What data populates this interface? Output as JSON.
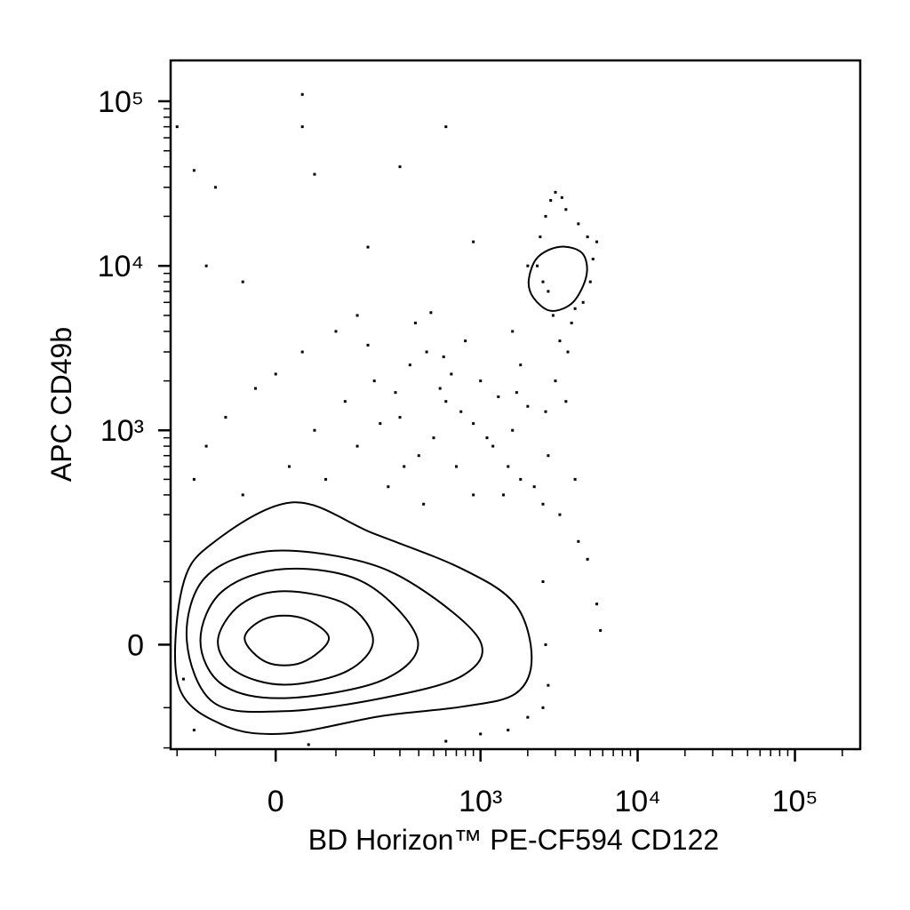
{
  "chart_data": {
    "type": "contour",
    "scale": "biexponential",
    "x_label": "BD Horizon™ PE-CF594 CD122",
    "y_label": "APC CD49b",
    "xlim": [
      -222,
      260000
    ],
    "ylim": [
      -204,
      177000
    ],
    "xticks": [
      0,
      {
        "value": 1000,
        "label": "10³"
      },
      {
        "value": 10000,
        "label": "10⁴"
      },
      {
        "value": 100000,
        "label": "10⁵"
      }
    ],
    "yticks": [
      0,
      {
        "value": 1000,
        "label": "10³"
      },
      {
        "value": 10000,
        "label": "10⁴"
      },
      {
        "value": 100000,
        "label": "10⁵"
      }
    ],
    "xminorticks": [
      -200,
      -100,
      100,
      200,
      300,
      400,
      500,
      600,
      700,
      800,
      900,
      2000,
      3000,
      4000,
      5000,
      6000,
      7000,
      8000,
      9000,
      20000,
      30000,
      40000,
      50000,
      60000,
      70000,
      80000,
      90000,
      200000
    ],
    "yminorticks": [
      -200,
      -100,
      100,
      200,
      300,
      400,
      500,
      600,
      700,
      800,
      900,
      2000,
      3000,
      4000,
      5000,
      6000,
      7000,
      8000,
      9000,
      20000,
      30000,
      40000,
      50000,
      60000,
      70000,
      80000,
      90000
    ],
    "color": "#000000",
    "contours": [
      {
        "x": [
          -196,
          -183,
          -104,
          26,
          196,
          763,
          1670,
          2120,
          1670,
          763,
          227,
          13,
          -86
        ],
        "y": [
          -59,
          90,
          197,
          359,
          227,
          127,
          59,
          -19,
          -74,
          -98,
          -117,
          -159,
          -137
        ]
      },
      {
        "x": [
          -170,
          -124,
          -13,
          146,
          394,
          990,
          763,
          227,
          13,
          -104
        ],
        "y": [
          6,
          107,
          171,
          148,
          90,
          6,
          -45,
          -82,
          -107,
          -90
        ]
      },
      {
        "x": [
          -134,
          -86,
          13,
          170,
          394,
          227,
          13,
          -86
        ],
        "y": [
          6,
          82,
          127,
          98,
          6,
          -52,
          -82,
          -59
        ]
      },
      {
        "x": [
          -95,
          -54,
          13,
          124,
          196,
          124,
          13,
          -62
        ],
        "y": [
          6,
          59,
          82,
          59,
          6,
          -38,
          -59,
          -38
        ]
      },
      {
        "x": [
          -47,
          -13,
          40,
          86,
          40,
          -13
        ],
        "y": [
          9,
          38,
          38,
          9,
          -25,
          -25
        ]
      },
      {
        "x": [
          2030,
          2310,
          3200,
          4430,
          4730,
          3890,
          2810,
          2170
        ],
        "y": [
          8230,
          11250,
          13060,
          11970,
          8770,
          6030,
          5330,
          6420
        ]
      }
    ],
    "events": {
      "x": [
        -50,
        20,
        80,
        150,
        250,
        300,
        400,
        500,
        600,
        700,
        900,
        1200,
        1500,
        1800,
        2200,
        2500,
        60,
        120,
        200,
        350,
        450,
        550,
        650,
        800,
        1000,
        1300,
        1700,
        2000,
        -80,
        -120,
        0,
        40,
        100,
        180,
        280,
        380,
        480,
        580,
        750,
        1100,
        1400,
        -150,
        -30,
        220,
        320,
        430,
        900,
        1600,
        2700,
        3200,
        2400,
        2600,
        2800,
        3000,
        3500,
        4200,
        4800,
        5200,
        5500,
        4500,
        3800,
        3200,
        2900,
        2500,
        2300,
        3600,
        4000,
        2700,
        5000,
        3300,
        -200,
        40,
        40,
        600,
        300,
        -100,
        -150,
        60,
        -120,
        180,
        900,
        -50,
        150,
        2000,
        1600,
        1800,
        2600,
        3000,
        3500,
        4000,
        4200,
        4800,
        5500,
        5800,
        -150,
        50,
        600,
        1000,
        1500,
        2000,
        2500,
        2700,
        2600,
        2500,
        -180
      ],
      "y": [
        400,
        600,
        500,
        800,
        450,
        1200,
        700,
        900,
        1500,
        600,
        1100,
        800,
        600,
        500,
        450,
        350,
        1000,
        1500,
        2000,
        2500,
        3000,
        1800,
        2200,
        3500,
        2000,
        1600,
        1700,
        1400,
        1200,
        800,
        2200,
        3000,
        4000,
        3300,
        1700,
        4500,
        5200,
        2800,
        1300,
        900,
        400,
        500,
        1800,
        1100,
        600,
        350,
        400,
        1000,
        700,
        300,
        15000,
        20000,
        25000,
        28000,
        22000,
        18000,
        15000,
        11000,
        14000,
        6000,
        4500,
        3500,
        5000,
        8000,
        10000,
        3000,
        5500,
        7000,
        8000,
        26000,
        70000,
        110000,
        70000,
        70000,
        40000,
        30000,
        38000,
        36000,
        10000,
        13000,
        14000,
        8000,
        5000,
        10000,
        4000,
        2500,
        1300,
        2000,
        1500,
        500,
        200,
        150,
        60,
        20,
        -150,
        -190,
        -180,
        -160,
        -150,
        -120,
        -100,
        -60,
        0,
        100,
        -50
      ]
    }
  }
}
